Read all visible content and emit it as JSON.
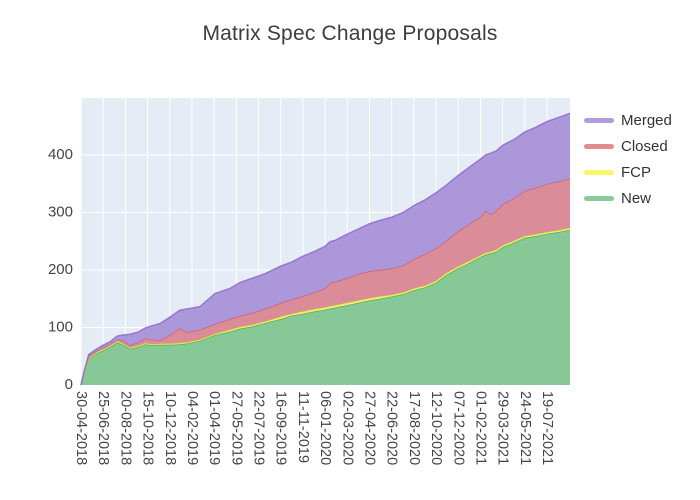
{
  "figure": {
    "title": "Matrix Spec Change Proposals"
  },
  "chart_data": {
    "type": "area",
    "stacked": true,
    "title": "Matrix Spec Change Proposals",
    "grid": true,
    "plot_background": "#e5ecf6",
    "grid_color": "#ffffff",
    "legend_position": "right-top",
    "legend": {
      "items": [
        {
          "label": "Merged",
          "color": "#b29ce0"
        },
        {
          "label": "Closed",
          "color": "#e28d8d"
        },
        {
          "label": "FCP",
          "color": "#f8f66c"
        },
        {
          "label": "New",
          "color": "#8bca9a"
        }
      ]
    },
    "y_axis": {
      "ticks": [
        0,
        100,
        200,
        300,
        400
      ],
      "max": 499
    },
    "x_axis": {
      "tick_labels": [
        "30-04-2018",
        "25-06-2018",
        "20-08-2018",
        "15-10-2018",
        "10-12-2018",
        "04-02-2019",
        "01-04-2019",
        "27-05-2019",
        "22-07-2019",
        "16-09-2019",
        "11-11-2019",
        "06-01-2020",
        "02-03-2020",
        "27-04-2020",
        "22-06-2020",
        "17-08-2020",
        "12-10-2020",
        "07-12-2020",
        "01-02-2021",
        "29-03-2021",
        "24-05-2021",
        "19-07-2021"
      ],
      "last_tick_pos": 0.953
    },
    "x": [
      0,
      0.006,
      0.016,
      0.033,
      0.045,
      0.059,
      0.074,
      0.086,
      0.1,
      0.117,
      0.131,
      0.145,
      0.162,
      0.182,
      0.202,
      0.215,
      0.243,
      0.274,
      0.305,
      0.325,
      0.352,
      0.378,
      0.409,
      0.432,
      0.454,
      0.477,
      0.499,
      0.509,
      0.521,
      0.544,
      0.567,
      0.589,
      0.611,
      0.636,
      0.659,
      0.681,
      0.704,
      0.726,
      0.748,
      0.771,
      0.793,
      0.816,
      0.828,
      0.838,
      0.849,
      0.863,
      0.886,
      0.908,
      0.93,
      0.953,
      0.976,
      1.0
    ],
    "series": [
      {
        "name": "New",
        "fill": "#87c897",
        "line": "#4dae66",
        "values": [
          0,
          18,
          46,
          55,
          60,
          66,
          74,
          70,
          63,
          66,
          71,
          69,
          70,
          70,
          71,
          72,
          77,
          87,
          93,
          98,
          102,
          108,
          115,
          121,
          124,
          128,
          131,
          133,
          135,
          139,
          143,
          147,
          150,
          154,
          158,
          165,
          170,
          178,
          192,
          203,
          212,
          222,
          227,
          229,
          232,
          240,
          248,
          256,
          259,
          263,
          266,
          270
        ]
      },
      {
        "name": "FCP",
        "fill": "#f4f172",
        "line": "#e3e135",
        "values": [
          0,
          1,
          1,
          2,
          2,
          2,
          2,
          2,
          2,
          2,
          2,
          2,
          2,
          2,
          2,
          2,
          2,
          2,
          3,
          3,
          3,
          3,
          4,
          3,
          4,
          4,
          4,
          4,
          4,
          4,
          4,
          4,
          4,
          3,
          3,
          3,
          3,
          3,
          3,
          3,
          3,
          3,
          3,
          3,
          3,
          3,
          3,
          3,
          3,
          3,
          3,
          3
        ]
      },
      {
        "name": "Closed",
        "fill": "#db8c99",
        "line": "#ca6476",
        "values": [
          0,
          2,
          4,
          3,
          3,
          3,
          4,
          5,
          4,
          6,
          8,
          8,
          6,
          15,
          26,
          18,
          17,
          17,
          19,
          19,
          21,
          22,
          24,
          25,
          27,
          29,
          33,
          40,
          41,
          43,
          46,
          47,
          46,
          46,
          47,
          51,
          55,
          57,
          57,
          61,
          65,
          67,
          73,
          65,
          68,
          72,
          74,
          79,
          81,
          84,
          85,
          86
        ]
      },
      {
        "name": "Merged",
        "fill": "#ab97d9",
        "line": "#9477d1",
        "values": [
          0,
          1,
          2,
          3,
          4,
          4,
          5,
          10,
          19,
          18,
          18,
          24,
          29,
          31,
          31,
          40,
          40,
          53,
          53,
          58,
          60,
          61,
          64,
          65,
          69,
          71,
          73,
          72,
          72,
          76,
          78,
          82,
          86,
          89,
          92,
          93,
          94,
          96,
          96,
          97,
          98,
          100,
          97,
          106,
          104,
          102,
          102,
          102,
          105,
          108,
          111,
          113
        ]
      }
    ]
  }
}
